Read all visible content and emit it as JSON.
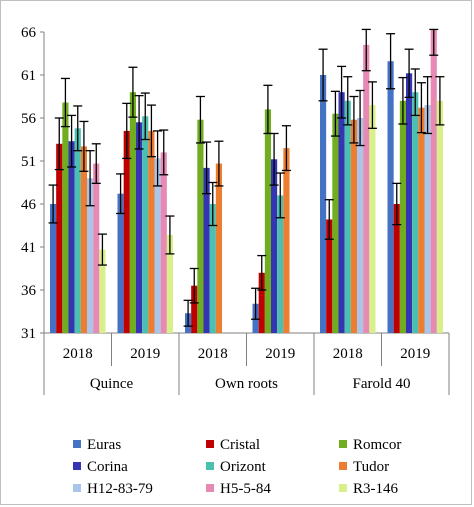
{
  "chart_data": {
    "type": "bar",
    "title": "",
    "xlabel": "",
    "ylabel": "",
    "ylim": [
      31,
      66
    ],
    "y_ticks": [
      31,
      36,
      41,
      46,
      51,
      56,
      61,
      66
    ],
    "grid": false,
    "error_bars": true,
    "legend_position": "bottom",
    "groups": [
      "Quince",
      "Own roots",
      "Farold 40"
    ],
    "categories": [
      "2018",
      "2019",
      "2018",
      "2019",
      "2018",
      "2019"
    ],
    "series": [
      {
        "name": "Euras",
        "color": "#4472c4",
        "values": [
          46.0,
          47.2,
          33.3,
          34.4,
          61.0,
          62.6
        ],
        "errors": [
          2.2,
          2.3,
          1.5,
          1.8,
          3.0,
          3.2
        ]
      },
      {
        "name": "Cristal",
        "color": "#c00000",
        "values": [
          53.0,
          54.5,
          36.5,
          38.0,
          44.2,
          46.0
        ],
        "errors": [
          3.0,
          3.2,
          2.0,
          2.0,
          2.3,
          2.4
        ]
      },
      {
        "name": "Romcor",
        "color": "#70ad20",
        "values": [
          57.8,
          59.0,
          55.8,
          57.0,
          56.5,
          58.0
        ],
        "errors": [
          2.8,
          2.9,
          2.7,
          2.8,
          2.6,
          2.7
        ]
      },
      {
        "name": "Corina",
        "color": "#3535b4",
        "values": [
          53.3,
          55.5,
          50.2,
          51.2,
          59.0,
          61.2
        ],
        "errors": [
          3.0,
          3.1,
          3.0,
          3.0,
          3.0,
          2.8
        ]
      },
      {
        "name": "Orizont",
        "color": "#4bc0b0",
        "values": [
          54.8,
          56.2,
          46.0,
          47.0,
          58.0,
          59.0
        ],
        "errors": [
          2.6,
          2.7,
          2.5,
          2.6,
          2.8,
          2.7
        ]
      },
      {
        "name": "Tudor",
        "color": "#ed7d31",
        "values": [
          52.7,
          54.5,
          50.7,
          52.5,
          55.8,
          57.2
        ],
        "errors": [
          2.9,
          3.0,
          2.6,
          2.6,
          2.7,
          2.9
        ]
      },
      {
        "name": "H12-83-79",
        "color": "#a9c5e9",
        "values": [
          49.0,
          51.3,
          null,
          null,
          56.0,
          57.5
        ],
        "errors": [
          3.2,
          3.2,
          0,
          0,
          3.2,
          3.3
        ]
      },
      {
        "name": "H5-5-84",
        "color": "#e68ab4",
        "values": [
          50.7,
          52.0,
          null,
          null,
          64.5,
          66.3
        ],
        "errors": [
          2.3,
          2.6,
          0,
          0,
          3.0,
          3.0
        ]
      },
      {
        "name": "R3-146",
        "color": "#d9f08a",
        "values": [
          40.7,
          42.4,
          null,
          null,
          57.5,
          58.0
        ],
        "errors": [
          1.8,
          2.2,
          0,
          0,
          2.7,
          2.8
        ]
      }
    ]
  }
}
